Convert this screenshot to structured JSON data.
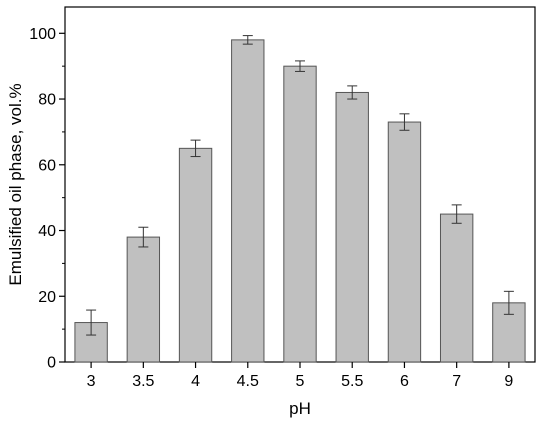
{
  "chart_data": {
    "type": "bar",
    "title": "",
    "xlabel": "pH",
    "ylabel": "Emulsified oil phase, vol.%",
    "categories": [
      "3",
      "3.5",
      "4",
      "4.5",
      "5",
      "5.5",
      "6",
      "7",
      "9"
    ],
    "values": [
      12,
      38,
      65,
      98,
      90,
      82,
      73,
      45,
      18
    ],
    "errors": [
      3.8,
      3.0,
      2.5,
      1.3,
      1.6,
      2.0,
      2.5,
      2.8,
      3.5
    ],
    "ylim": [
      0,
      108
    ],
    "yticks": [
      0,
      20,
      40,
      60,
      80,
      100
    ],
    "grid": false,
    "bar_color": "#c0c0c0",
    "bar_edge_color": "#555555"
  }
}
